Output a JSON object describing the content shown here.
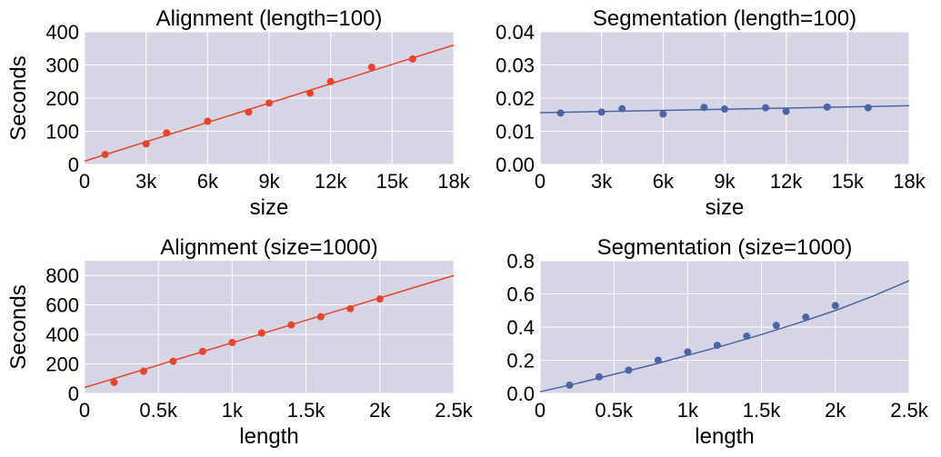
{
  "colors": {
    "plot_background": "#d5d5e6",
    "alignment": "#e8442a",
    "segmentation": "#4a64a5"
  },
  "chart_data": [
    {
      "type": "scatter",
      "title": "Alignment (length=100)",
      "xlabel": "size",
      "ylabel": "Seconds",
      "xlim": [
        0,
        18000
      ],
      "ylim": [
        0,
        400
      ],
      "xticks": [
        0,
        3000,
        6000,
        9000,
        12000,
        15000,
        18000
      ],
      "xticklabels": [
        "0",
        "3k",
        "6k",
        "9k",
        "12k",
        "15k",
        "18k"
      ],
      "yticks": [
        0,
        100,
        200,
        300,
        400
      ],
      "yticklabels": [
        "0",
        "100",
        "200",
        "300",
        "400"
      ],
      "grid": true,
      "color": "alignment",
      "points": {
        "x": [
          1000,
          3000,
          4000,
          6000,
          8000,
          9000,
          11000,
          12000,
          14000,
          16000
        ],
        "y": [
          30,
          62,
          95,
          130,
          158,
          185,
          215,
          250,
          293,
          318
        ]
      },
      "fit": {
        "x": [
          0,
          18000
        ],
        "y": [
          10,
          360
        ]
      }
    },
    {
      "type": "scatter",
      "title": "Segmentation (length=100)",
      "xlabel": "size",
      "ylabel": "",
      "xlim": [
        0,
        18000
      ],
      "ylim": [
        0,
        0.04
      ],
      "xticks": [
        0,
        3000,
        6000,
        9000,
        12000,
        15000,
        18000
      ],
      "xticklabels": [
        "0",
        "3k",
        "6k",
        "9k",
        "12k",
        "15k",
        "18k"
      ],
      "yticks": [
        0,
        0.01,
        0.02,
        0.03,
        0.04
      ],
      "yticklabels": [
        "0.00",
        "0.01",
        "0.02",
        "0.03",
        "0.04"
      ],
      "grid": true,
      "color": "segmentation",
      "points": {
        "x": [
          1000,
          3000,
          4000,
          6000,
          8000,
          9000,
          11000,
          12000,
          14000,
          16000
        ],
        "y": [
          0.0155,
          0.0158,
          0.0168,
          0.0152,
          0.0172,
          0.0167,
          0.0171,
          0.016,
          0.0173,
          0.0171
        ]
      },
      "fit": {
        "x": [
          0,
          18000
        ],
        "y": [
          0.0156,
          0.0177
        ]
      }
    },
    {
      "type": "scatter",
      "title": "Alignment (size=1000)",
      "xlabel": "length",
      "ylabel": "Seconds",
      "xlim": [
        0,
        2500
      ],
      "ylim": [
        0,
        900
      ],
      "xticks": [
        0,
        500,
        1000,
        1500,
        2000,
        2500
      ],
      "xticklabels": [
        "0",
        "0.5k",
        "1k",
        "1.5k",
        "2k",
        "2.5k"
      ],
      "yticks": [
        0,
        200,
        400,
        600,
        800
      ],
      "yticklabels": [
        "0",
        "200",
        "400",
        "600",
        "800"
      ],
      "grid": true,
      "color": "alignment",
      "points": {
        "x": [
          200,
          400,
          600,
          800,
          1000,
          1200,
          1400,
          1600,
          1800,
          2000
        ],
        "y": [
          75,
          150,
          218,
          285,
          345,
          410,
          465,
          520,
          575,
          640
        ]
      },
      "fit": {
        "x": [
          0,
          2500
        ],
        "y": [
          40,
          800
        ]
      }
    },
    {
      "type": "scatter",
      "title": "Segmentation (size=1000)",
      "xlabel": "length",
      "ylabel": "",
      "xlim": [
        0,
        2500
      ],
      "ylim": [
        0,
        0.8
      ],
      "xticks": [
        0,
        500,
        1000,
        1500,
        2000,
        2500
      ],
      "xticklabels": [
        "0",
        "0.5k",
        "1k",
        "1.5k",
        "2k",
        "2.5k"
      ],
      "yticks": [
        0,
        0.2,
        0.4,
        0.6,
        0.8
      ],
      "yticklabels": [
        "0.0",
        "0.2",
        "0.4",
        "0.6",
        "0.8"
      ],
      "grid": true,
      "color": "segmentation",
      "points": {
        "x": [
          200,
          400,
          600,
          800,
          1000,
          1200,
          1400,
          1600,
          1800,
          2000
        ],
        "y": [
          0.05,
          0.1,
          0.14,
          0.2,
          0.25,
          0.29,
          0.345,
          0.41,
          0.46,
          0.53
        ]
      },
      "fit": {
        "x": [
          0,
          250,
          500,
          750,
          1000,
          1250,
          1500,
          1750,
          2000,
          2250,
          2500
        ],
        "y": [
          0.01,
          0.06,
          0.115,
          0.17,
          0.23,
          0.29,
          0.355,
          0.425,
          0.5,
          0.585,
          0.68
        ]
      }
    }
  ]
}
